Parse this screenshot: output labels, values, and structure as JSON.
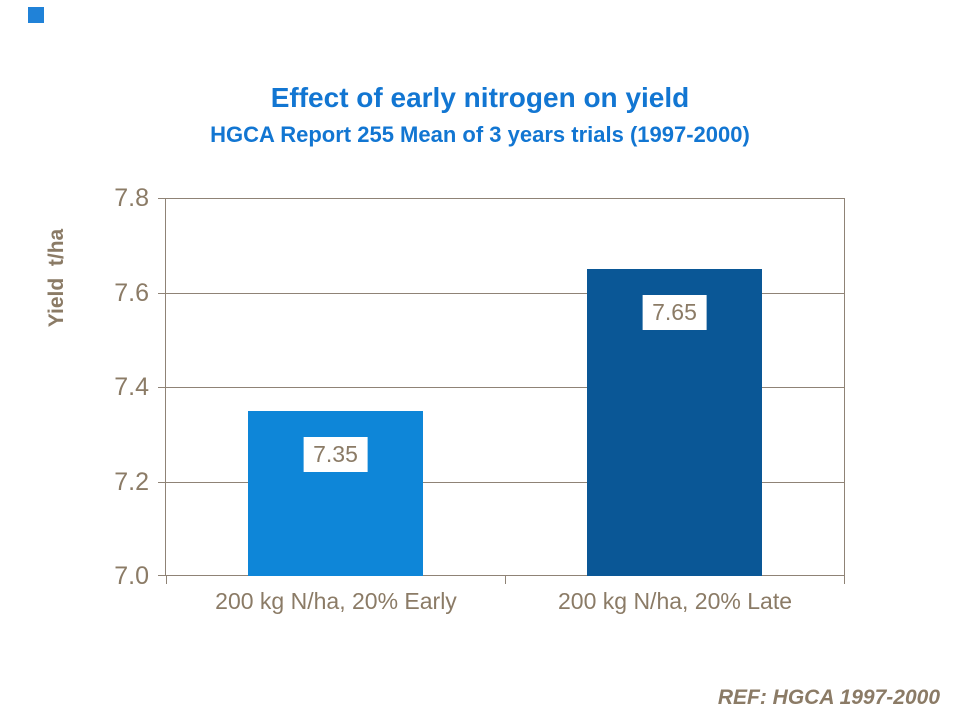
{
  "slide": {
    "title": "Effect of early nitrogen on yield",
    "subtitle": "HGCA Report 255 Mean of 3 years trials (1997-2000)",
    "ref_label": "REF: HGCA 1997-2000"
  },
  "colors": {
    "title_blue": "#1276d2",
    "bar_early_blue": "#0e86d8",
    "bar_late_blue": "#0a5796",
    "axis_text_brown": "#8b7b66",
    "gridline_brown": "#8f8376",
    "decoration_blue": "#2082d8",
    "background": "#ffffff"
  },
  "chart_data": {
    "type": "bar",
    "title": "Effect of early nitrogen on yield",
    "subtitle": "HGCA Report 255 Mean of 3 years trials (1997-2000)",
    "categories": [
      "200 kg N/ha, 20% Early",
      "200 kg N/ha, 20% Late"
    ],
    "values": [
      7.35,
      7.65
    ],
    "value_labels": [
      "7.35",
      "7.65"
    ],
    "bar_colors": [
      "#0e86d8",
      "#0a5796"
    ],
    "xlabel": "",
    "ylabel": "Yield  t/ha",
    "ylim": [
      7.0,
      7.8
    ],
    "ytick_interval": 0.2,
    "yticks_top_to_bottom": [
      "7.8",
      "7.6",
      "7.4",
      "7.2",
      "7.0"
    ],
    "grid": true,
    "legend": false,
    "annotation": "REF: HGCA 1997-2000"
  }
}
